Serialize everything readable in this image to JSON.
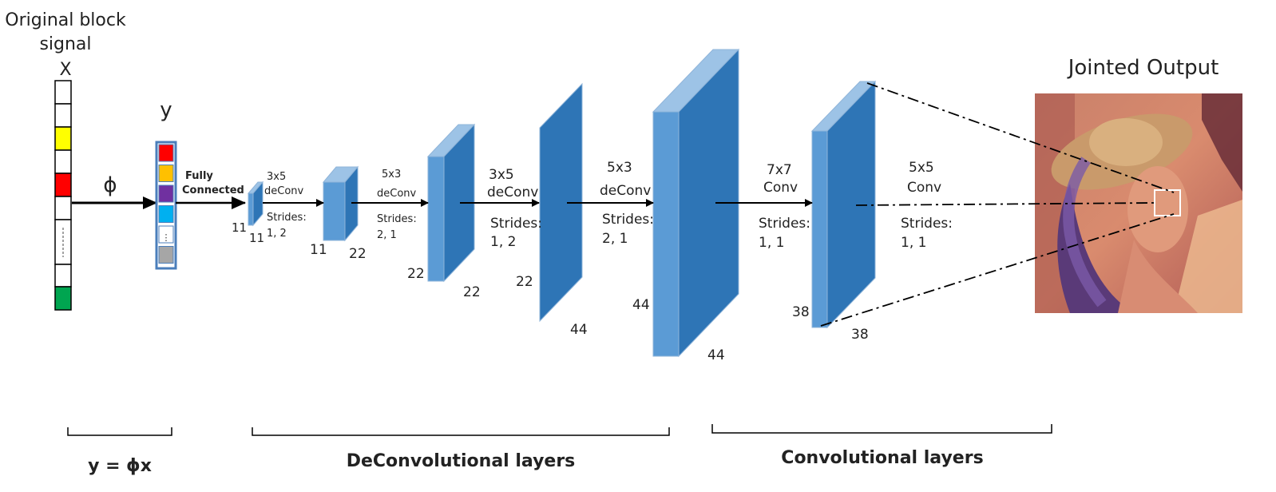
{
  "signal": {
    "title_line1": "Original block",
    "title_line2": "signal",
    "x_label": "X",
    "y_label": "y",
    "phi": "ϕ",
    "x_cell_colors": [
      "#ffffff",
      "#ffffff",
      "#ffff00",
      "#ffffff",
      "#ff0000",
      "#ffffff",
      "#ffffff",
      "#ffffff",
      "#00a550"
    ],
    "y_cell_colors": [
      "#ff0000",
      "#ffc000",
      "#7030a0",
      "#00b0f0",
      "#ffffff",
      "#a6a6a6"
    ],
    "y_ellipsis": "⋮"
  },
  "fc": {
    "line1": "Fully",
    "line2": "Connected"
  },
  "ops": {
    "op1": {
      "k": "3x5",
      "t": "deConv",
      "s1": "Strides:",
      "s2": "1, 2"
    },
    "op2": {
      "k": "5x3",
      "t": "deConv",
      "s1": "Strides:",
      "s2": "2, 1"
    },
    "op3": {
      "k": "3x5",
      "t": "deConv",
      "s1": "Strides:",
      "s2": "1, 2"
    },
    "op4": {
      "k": "5x3",
      "t": "deConv",
      "s1": "Strides:",
      "s2": "2, 1"
    },
    "op5": {
      "k": "7x7",
      "t": "Conv",
      "s1": "Strides:",
      "s2": "1, 1"
    },
    "op6": {
      "k": "5x5",
      "t": "Conv",
      "s1": "Strides:",
      "s2": "1, 1"
    }
  },
  "dims": {
    "b1_h": "11",
    "b1_w": "11",
    "b2_h": "11",
    "b2_w": "22",
    "b3_h": "22",
    "b3_w": "22",
    "b4_h": "22",
    "b4_w": "44",
    "b5_h": "44",
    "b5_w": "44",
    "b6_h": "38",
    "b6_w": "38"
  },
  "output": {
    "title": "Jointed Output"
  },
  "brackets": {
    "measure": "y = ϕx",
    "deconv": "DeConvolutional layers",
    "conv": "Convolutional layers"
  },
  "colors": {
    "front": "#5b9bd5",
    "side": "#2e75b6",
    "top": "#9dc3e6",
    "edge": "#8fb4d9"
  }
}
